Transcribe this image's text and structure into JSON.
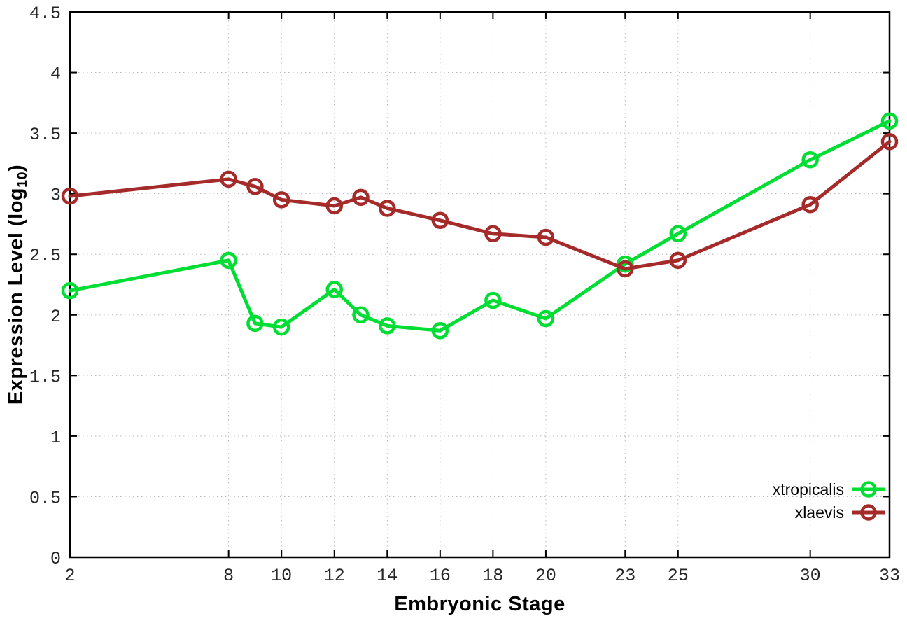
{
  "chart_data": {
    "type": "line",
    "xlabel": "Embryonic Stage",
    "ylabel_prefix": "Expression Level (log",
    "ylabel_sub": "10",
    "ylabel_suffix": ")",
    "x": [
      2,
      8,
      9,
      10,
      12,
      13,
      14,
      16,
      18,
      20,
      23,
      25,
      30,
      33
    ],
    "series": [
      {
        "name": "xtropicalis",
        "color": "#00dd33",
        "marker": "open-circle",
        "values": [
          2.2,
          2.45,
          1.93,
          1.9,
          2.21,
          2.0,
          1.91,
          1.87,
          2.12,
          1.97,
          2.42,
          2.67,
          3.28,
          3.6
        ]
      },
      {
        "name": "xlaevis",
        "color": "#a52a2a",
        "marker": "open-circle",
        "values": [
          2.98,
          3.12,
          3.06,
          2.95,
          2.9,
          2.97,
          2.88,
          2.78,
          2.67,
          2.64,
          2.38,
          2.45,
          2.91,
          3.43
        ]
      }
    ],
    "x_ticks": [
      2,
      8,
      10,
      12,
      14,
      16,
      18,
      20,
      23,
      25,
      30,
      33
    ],
    "y_ticks": [
      "0",
      "0.5",
      "1",
      "1.5",
      "2",
      "2.5",
      "3",
      "3.5",
      "4",
      "4.5"
    ],
    "xlim": [
      2,
      33
    ],
    "ylim": [
      0,
      4.5
    ],
    "grid": true,
    "grid_color": "#b8b8b8",
    "frame_color": "#000000",
    "legend_position": "bottom-right"
  }
}
